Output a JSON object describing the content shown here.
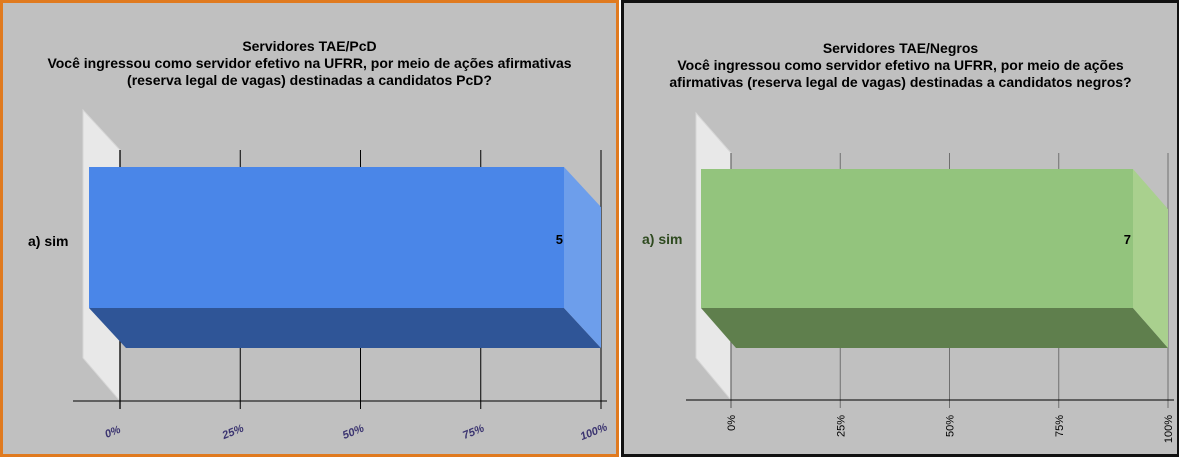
{
  "colors": {
    "left_bar": "#4a86e8",
    "left_bar_right": "#6d9eeb",
    "left_bar_bottom": "#2f5597",
    "right_bar": "#93c47d",
    "right_bar_right": "#a9d08e",
    "right_bar_bottom": "#5f7f4d",
    "left_border": "#e07a1f",
    "right_border": "#111111",
    "left_category_color": "#000000",
    "right_category_color": "#2e4a1f"
  },
  "chart_data": [
    {
      "type": "bar",
      "orientation": "horizontal",
      "title": [
        "Servidores TAE/PcD",
        "Você ingressou como servidor efetivo na UFRR, por meio de ações afirmativas",
        "(reserva legal de vagas) destinadas a candidatos PcD?"
      ],
      "categories": [
        "a) sim"
      ],
      "values": [
        5
      ],
      "percent": [
        100
      ],
      "xticks": [
        "0%",
        "25%",
        "50%",
        "75%",
        "100%"
      ],
      "xlim": [
        0,
        100
      ],
      "grid": true
    },
    {
      "type": "bar",
      "orientation": "horizontal",
      "title": [
        "Servidores TAE/Negros",
        "Você ingressou como servidor efetivo na UFRR, por meio de ações",
        "afirmativas (reserva legal de vagas) destinadas a candidatos negros?"
      ],
      "categories": [
        "a) sim"
      ],
      "values": [
        7
      ],
      "percent": [
        100
      ],
      "xticks": [
        "0%",
        "25%",
        "50%",
        "75%",
        "100%"
      ],
      "xlim": [
        0,
        100
      ],
      "grid": true
    }
  ]
}
